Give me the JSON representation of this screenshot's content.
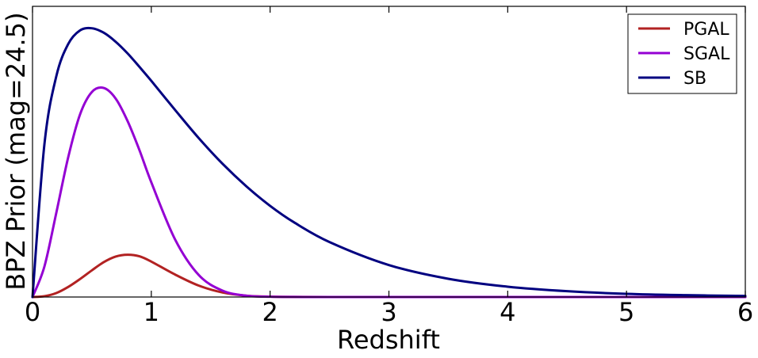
{
  "chart_data": {
    "type": "line",
    "title": "",
    "xlabel": "Redshift",
    "ylabel": "BPZ Prior (mag=24.5)",
    "xlim": [
      0,
      6
    ],
    "ylim": [
      0,
      1.1
    ],
    "xticks": [
      "0",
      "1",
      "2",
      "3",
      "4",
      "5",
      "6"
    ],
    "yticks_labeled": false,
    "grid": false,
    "legend_position": "top-right",
    "x": [
      0,
      0.1,
      0.2,
      0.3,
      0.4,
      0.5,
      0.6,
      0.7,
      0.8,
      0.9,
      1.0,
      1.2,
      1.4,
      1.6,
      1.8,
      2.0,
      2.2,
      2.5,
      3.0,
      3.5,
      4.0,
      4.5,
      5.0,
      5.5,
      6.0
    ],
    "series": [
      {
        "name": "PGAL",
        "color": "#b22222",
        "values": [
          0.0,
          0.003,
          0.015,
          0.038,
          0.068,
          0.101,
          0.132,
          0.153,
          0.16,
          0.154,
          0.134,
          0.085,
          0.043,
          0.017,
          0.005,
          0.0015,
          0.0004,
          0.0,
          0.0,
          0.0,
          0.0,
          0.0,
          0.0,
          0.0,
          0.0
        ]
      },
      {
        "name": "SGAL",
        "color": "#9400d3",
        "values": [
          0.0,
          0.115,
          0.318,
          0.528,
          0.691,
          0.776,
          0.791,
          0.751,
          0.666,
          0.556,
          0.434,
          0.218,
          0.083,
          0.024,
          0.005,
          0.001,
          0.0002,
          0.0,
          0.0,
          0.0,
          0.0,
          0.0,
          0.0,
          0.0,
          0.0
        ]
      },
      {
        "name": "SB",
        "color": "#000080",
        "values": [
          0.0,
          0.577,
          0.835,
          0.957,
          1.009,
          1.017,
          1.0,
          0.966,
          0.922,
          0.871,
          0.818,
          0.708,
          0.601,
          0.504,
          0.419,
          0.345,
          0.283,
          0.208,
          0.121,
          0.069,
          0.039,
          0.022,
          0.012,
          0.007,
          0.004
        ]
      }
    ]
  }
}
